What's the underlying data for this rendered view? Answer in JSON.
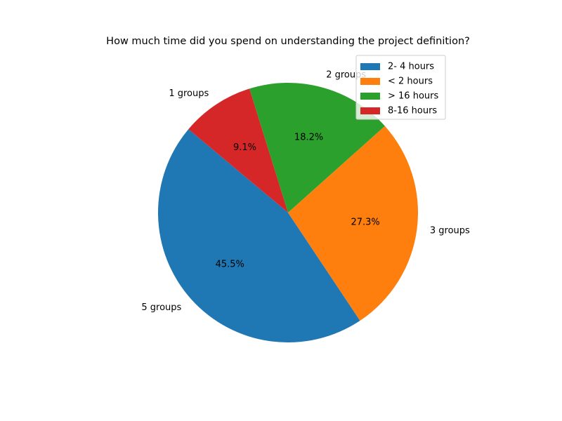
{
  "chart_data": {
    "type": "pie",
    "title": "How much time did you spend on understanding the project definition?",
    "start_angle_deg": 140,
    "direction": "counterclockwise",
    "legend_placement": "top-right",
    "slices": [
      {
        "name": "2- 4 hours",
        "value": 5,
        "outer_label": "5 groups",
        "pct_label": "45.5%",
        "color": "#1f77b4"
      },
      {
        "name": "< 2 hours",
        "value": 3,
        "outer_label": "3 groups",
        "pct_label": "27.3%",
        "color": "#ff7f0e"
      },
      {
        "name": "> 16 hours",
        "value": 2,
        "outer_label": "2 groups",
        "pct_label": "18.2%",
        "color": "#2ca02c"
      },
      {
        "name": "8-16 hours",
        "value": 1,
        "outer_label": "1 groups",
        "pct_label": "9.1%",
        "color": "#d62728"
      }
    ]
  }
}
